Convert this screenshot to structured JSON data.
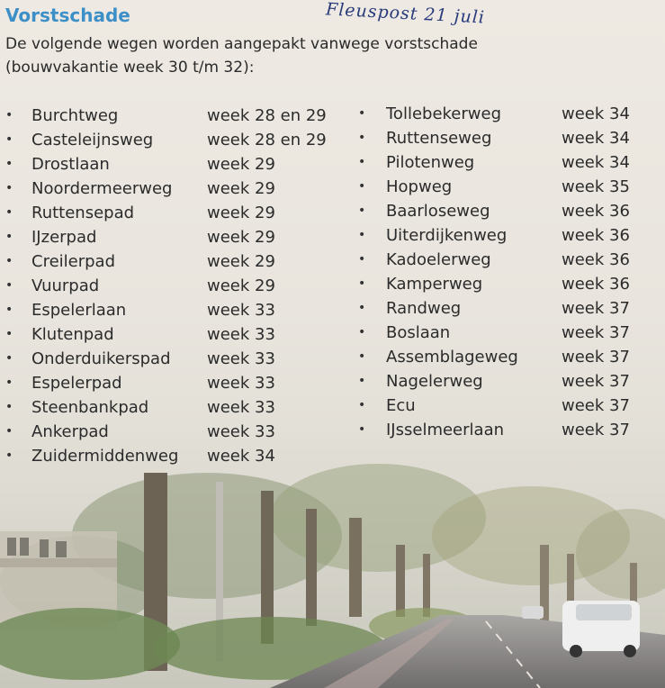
{
  "title": "Vorstschade",
  "handwritten_note": "Fleuspost  21 juli",
  "intro": {
    "line1": "De volgende wegen worden aangepakt vanwege vorstschade",
    "line2": "(bouwvakantie week 30 t/m 32):"
  },
  "bullet": "•",
  "roads_left": [
    {
      "name": "Burchtweg",
      "week": "week 28 en 29"
    },
    {
      "name": "Casteleijnsweg",
      "week": "week 28 en 29"
    },
    {
      "name": "Drostlaan",
      "week": "week 29"
    },
    {
      "name": "Noordermeerweg",
      "week": "week 29"
    },
    {
      "name": "Ruttensepad",
      "week": "week 29"
    },
    {
      "name": "IJzerpad",
      "week": "week 29"
    },
    {
      "name": "Creilerpad",
      "week": "week 29"
    },
    {
      "name": "Vuurpad",
      "week": "week 29"
    },
    {
      "name": "Espelerlaan",
      "week": "week 33"
    },
    {
      "name": "Klutenpad",
      "week": "week 33"
    },
    {
      "name": "Onderduikerspad",
      "week": "week 33"
    },
    {
      "name": "Espelerpad",
      "week": "week 33"
    },
    {
      "name": "Steenbankpad",
      "week": "week 33"
    },
    {
      "name": "Ankerpad",
      "week": "week 33"
    },
    {
      "name": "Zuidermiddenweg",
      "week": "week 34"
    }
  ],
  "roads_right": [
    {
      "name": "Tollebekerweg",
      "week": "week 34"
    },
    {
      "name": "Ruttenseweg",
      "week": "week 34"
    },
    {
      "name": "Pilotenweg",
      "week": "week 34"
    },
    {
      "name": "Hopweg",
      "week": "week 35"
    },
    {
      "name": "Baarloseweg",
      "week": "week 36"
    },
    {
      "name": "Uiterdijkenweg",
      "week": "week 36"
    },
    {
      "name": "Kadoelerweg",
      "week": "week 36"
    },
    {
      "name": "Kamperweg",
      "week": "week 36"
    },
    {
      "name": "Randweg",
      "week": "week 37"
    },
    {
      "name": "Boslaan",
      "week": "week 37"
    },
    {
      "name": "Assemblageweg",
      "week": "week 37"
    },
    {
      "name": "Nagelerweg",
      "week": "week 37"
    },
    {
      "name": "Ecu",
      "week": "week 37"
    },
    {
      "name": "IJsselmeerlaan",
      "week": "week 37"
    }
  ],
  "colors": {
    "title": "#3d8fc8",
    "text": "#2b2b2b",
    "handwriting": "#283a7a",
    "paper": "#ece7df"
  }
}
